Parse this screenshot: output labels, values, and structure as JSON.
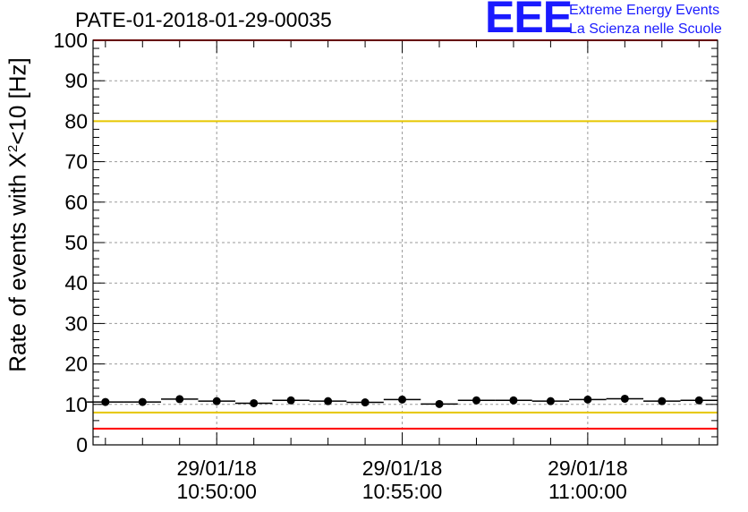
{
  "title": "PATE-01-2018-01-29-00035",
  "logo": {
    "mark": "EEE",
    "line1": "Extreme Energy Events",
    "line2": "La Scienza nelle Scuole"
  },
  "chart_data": {
    "type": "scatter",
    "title": "PATE-01-2018-01-29-00035",
    "ylabel_prefix": "Rate of events with X",
    "ylabel_sup": "2",
    "ylabel_suffix": "<10 [Hz]",
    "ylim": [
      0,
      100
    ],
    "yticks": [
      0,
      10,
      20,
      30,
      40,
      50,
      60,
      70,
      80,
      90,
      100
    ],
    "xlim": [
      "10:46:40",
      "11:03:30"
    ],
    "xticks": [
      {
        "time": "10:50:00",
        "date": "29/01/18",
        "label": "10:50:00"
      },
      {
        "time": "10:55:00",
        "date": "29/01/18",
        "label": "10:55:00"
      },
      {
        "time": "11:00:00",
        "date": "29/01/18",
        "label": "11:00:00"
      }
    ],
    "grid": true,
    "reference_lines": [
      {
        "y": 80,
        "color": "#e6c600"
      },
      {
        "y": 8,
        "color": "#e6c600"
      },
      {
        "y": 100,
        "color": "#ff0000"
      },
      {
        "y": 4,
        "color": "#ff0000"
      }
    ],
    "bin_width_s": 60,
    "points": [
      {
        "x": "10:47:00",
        "y": 10.6
      },
      {
        "x": "10:48:00",
        "y": 10.6
      },
      {
        "x": "10:49:00",
        "y": 11.3
      },
      {
        "x": "10:50:00",
        "y": 10.8
      },
      {
        "x": "10:51:00",
        "y": 10.3
      },
      {
        "x": "10:52:00",
        "y": 11.0
      },
      {
        "x": "10:53:00",
        "y": 10.8
      },
      {
        "x": "10:54:00",
        "y": 10.5
      },
      {
        "x": "10:55:00",
        "y": 11.2
      },
      {
        "x": "10:56:00",
        "y": 10.1
      },
      {
        "x": "10:57:00",
        "y": 11.0
      },
      {
        "x": "10:58:00",
        "y": 11.0
      },
      {
        "x": "10:59:00",
        "y": 10.8
      },
      {
        "x": "11:00:00",
        "y": 11.2
      },
      {
        "x": "11:01:00",
        "y": 11.4
      },
      {
        "x": "11:02:00",
        "y": 10.8
      },
      {
        "x": "11:03:00",
        "y": 11.0
      }
    ]
  }
}
